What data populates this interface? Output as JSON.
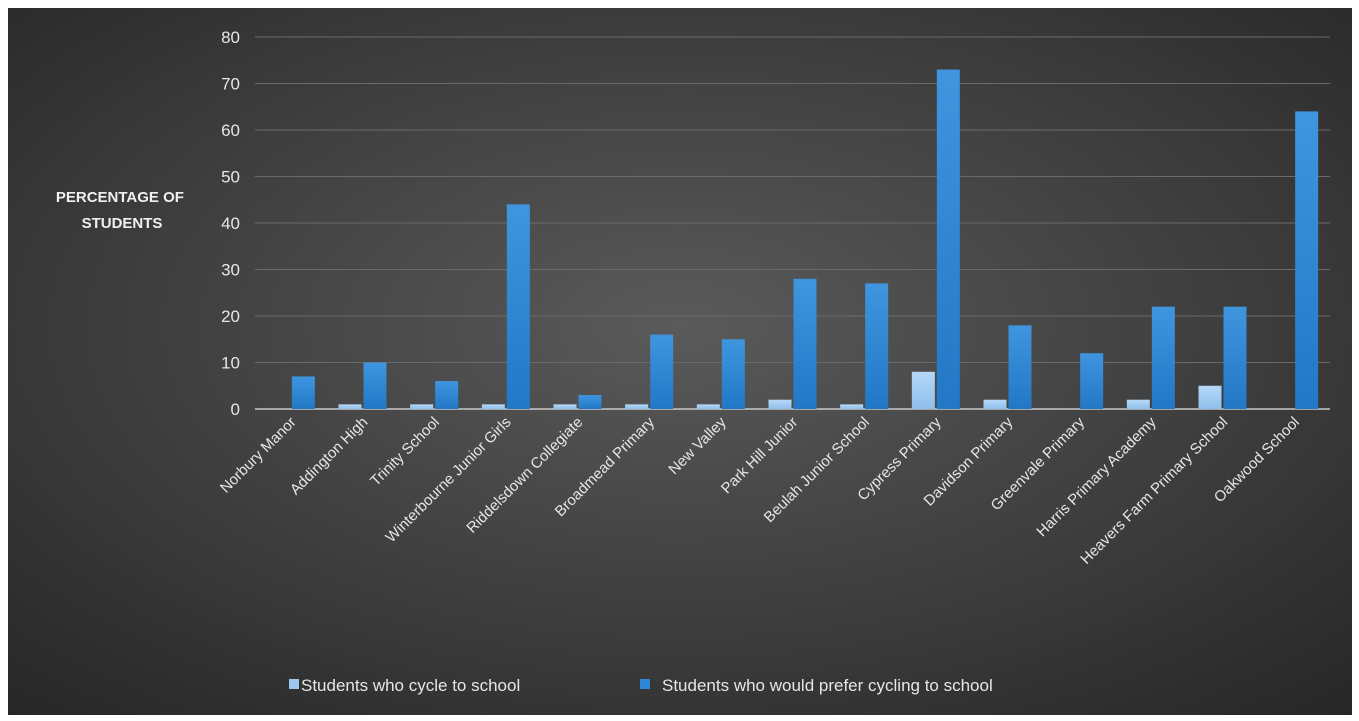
{
  "chart_data": {
    "type": "bar",
    "ylabel": "PERCENTAGE OF STUDENTS",
    "ylabel_lines": [
      "PERCENTAGE OF",
      "STUDENTS"
    ],
    "ylim": [
      0,
      80
    ],
    "yticks": [
      "0",
      "10",
      "20",
      "30",
      "40",
      "50",
      "60",
      "70",
      "80"
    ],
    "grid": true,
    "legend_position": "bottom",
    "categories": [
      "Norbury Manor",
      "Addington High",
      "Trinity School",
      "Winterbourne Junior Girls",
      "Riddelsdown Collegiate",
      "Broadmead Primary",
      "New Valley",
      "Park Hill Junior",
      "Beulah Junior School",
      "Cypress Primary",
      "Davidson Primary",
      "Greenvale Primary",
      "Harris Primary Academy",
      "Heavers Farm Primary School",
      "Oakwood School"
    ],
    "series": [
      {
        "name": "Students who cycle to school",
        "color": "#9cc8f0",
        "values": [
          0,
          1,
          1,
          1,
          1,
          1,
          1,
          2,
          1,
          8,
          2,
          0,
          2,
          5,
          0
        ]
      },
      {
        "name": "Students who would prefer cycling to school",
        "color": "#2e86d4",
        "values": [
          7,
          10,
          6,
          44,
          3,
          16,
          15,
          28,
          27,
          73,
          18,
          12,
          22,
          22,
          64
        ]
      }
    ]
  }
}
